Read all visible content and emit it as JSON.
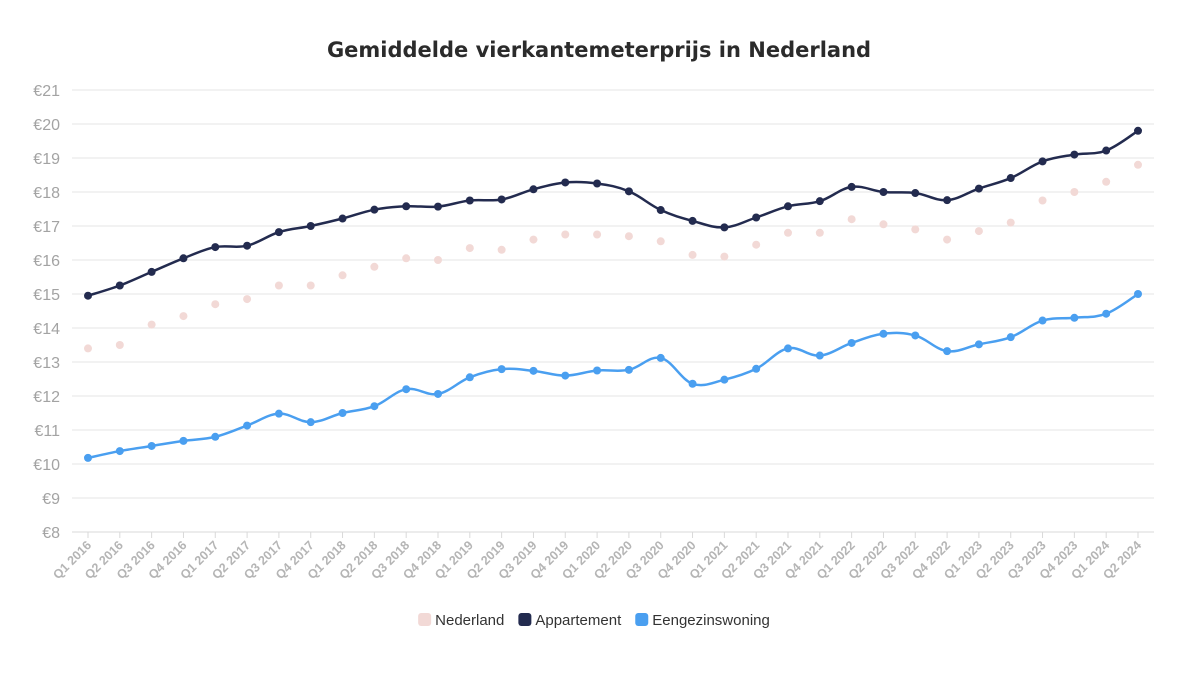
{
  "chart_data": {
    "type": "line",
    "title": "Gemiddelde vierkantemeterprijs in Nederland",
    "xlabel": "",
    "ylabel": "",
    "ylim": [
      8,
      21
    ],
    "y_ticks": [
      "€8",
      "€9",
      "€10",
      "€11",
      "€12",
      "€13",
      "€14",
      "€15",
      "€16",
      "€17",
      "€18",
      "€19",
      "€20",
      "€21"
    ],
    "grid": true,
    "legend_position": "bottom",
    "categories": [
      "Q1 2016",
      "Q2 2016",
      "Q3 2016",
      "Q4 2016",
      "Q1 2017",
      "Q2 2017",
      "Q3 2017",
      "Q4 2017",
      "Q1 2018",
      "Q2 2018",
      "Q3 2018",
      "Q4 2018",
      "Q1 2019",
      "Q2 2019",
      "Q3 2019",
      "Q4 2019",
      "Q1 2020",
      "Q2 2020",
      "Q3 2020",
      "Q4 2020",
      "Q1 2021",
      "Q2 2021",
      "Q3 2021",
      "Q4 2021",
      "Q1 2022",
      "Q2 2022",
      "Q3 2022",
      "Q4 2022",
      "Q1 2023",
      "Q2 2023",
      "Q3 2023",
      "Q4 2023",
      "Q1 2024",
      "Q2 2024"
    ],
    "series": [
      {
        "name": "Nederland",
        "style": "points",
        "color": "#f2d9d6",
        "values": [
          13.4,
          13.5,
          14.1,
          14.35,
          14.7,
          14.85,
          15.25,
          15.25,
          15.55,
          15.8,
          16.05,
          16.0,
          16.35,
          16.3,
          16.6,
          16.75,
          16.75,
          16.7,
          16.55,
          16.15,
          16.1,
          16.45,
          16.8,
          16.8,
          17.2,
          17.05,
          16.9,
          16.6,
          16.85,
          17.1,
          17.75,
          18.0,
          18.3,
          18.8
        ]
      },
      {
        "name": "Appartement",
        "style": "line",
        "color": "#232b4f",
        "values": [
          14.95,
          15.25,
          15.65,
          16.05,
          16.38,
          16.42,
          16.82,
          17.0,
          17.22,
          17.48,
          17.58,
          17.57,
          17.75,
          17.78,
          18.08,
          18.28,
          18.25,
          18.02,
          17.47,
          17.15,
          16.96,
          17.25,
          17.58,
          17.73,
          18.15,
          18.0,
          17.97,
          17.76,
          18.1,
          18.41,
          18.9,
          19.1,
          19.22,
          19.8
        ]
      },
      {
        "name": "Eengezinswoning",
        "style": "line",
        "color": "#4a9ff0",
        "values": [
          10.18,
          10.38,
          10.53,
          10.68,
          10.8,
          11.13,
          11.48,
          11.23,
          11.5,
          11.7,
          12.2,
          12.06,
          12.55,
          12.79,
          12.74,
          12.6,
          12.75,
          12.77,
          13.12,
          12.36,
          12.48,
          12.8,
          13.4,
          13.19,
          13.56,
          13.83,
          13.78,
          13.32,
          13.52,
          13.73,
          14.22,
          14.3,
          14.42,
          15.0
        ]
      }
    ]
  }
}
